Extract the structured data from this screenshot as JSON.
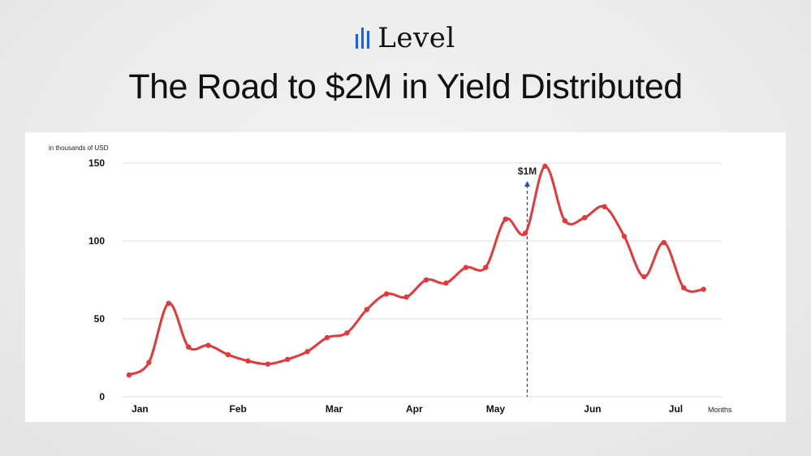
{
  "brand": {
    "name": "Level",
    "icon": "level-bars-icon",
    "color": "#1a5cff"
  },
  "headline": "The Road to $2M in Yield Distributed",
  "chart_data": {
    "type": "line",
    "unit_label": "in thousands of USD",
    "xlabel": "Months",
    "ylabel": "",
    "ylim": [
      0,
      150
    ],
    "yticks": [
      0,
      50,
      100,
      150
    ],
    "x_tick_labels": [
      "Jan",
      "Feb",
      "Mar",
      "Apr",
      "May",
      "Jun",
      "Jul"
    ],
    "grid": true,
    "series": [
      {
        "color": "#e63838",
        "x": [
          0,
          1,
          2,
          3,
          4,
          5,
          6,
          7,
          8,
          9,
          10,
          11,
          12,
          13,
          14,
          15,
          16,
          17,
          18,
          19,
          20,
          21,
          22,
          23,
          24,
          25,
          26,
          27,
          28,
          29
        ],
        "values": [
          14,
          22,
          60,
          32,
          33,
          27,
          23,
          21,
          24,
          29,
          38,
          41,
          56,
          66,
          64,
          75,
          73,
          83,
          83,
          114,
          105,
          148,
          113,
          115,
          122,
          103,
          77,
          99,
          70,
          69
        ]
      }
    ],
    "annotation": {
      "label": "$1M",
      "x": 20.1,
      "color": "#1a4fd6"
    }
  }
}
